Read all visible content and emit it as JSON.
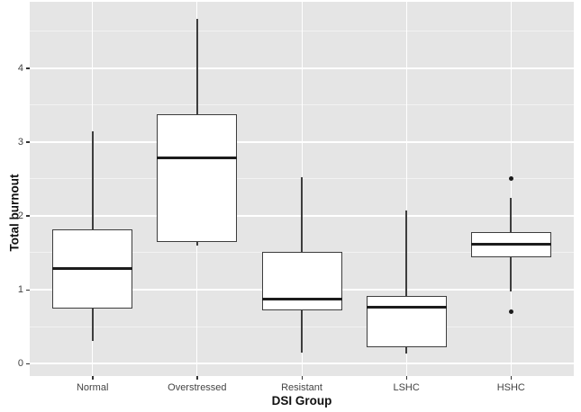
{
  "chart_data": {
    "type": "boxplot",
    "title": "",
    "xlabel": "DSI Group",
    "ylabel": "Total burnout",
    "categories": [
      "Normal",
      "Overstressed",
      "Resistant",
      "LSHC",
      "HSHC"
    ],
    "series": [
      {
        "category": "Normal",
        "whisker_low": 0.3,
        "q1": 0.74,
        "median": 1.29,
        "q3": 1.82,
        "whisker_high": 3.15,
        "outliers": []
      },
      {
        "category": "Overstressed",
        "whisker_low": 1.6,
        "q1": 1.65,
        "median": 2.78,
        "q3": 3.38,
        "whisker_high": 4.67,
        "outliers": []
      },
      {
        "category": "Resistant",
        "whisker_low": 0.15,
        "q1": 0.72,
        "median": 0.87,
        "q3": 1.51,
        "whisker_high": 2.52,
        "outliers": []
      },
      {
        "category": "LSHC",
        "whisker_low": 0.13,
        "q1": 0.22,
        "median": 0.76,
        "q3": 0.92,
        "whisker_high": 2.07,
        "outliers": []
      },
      {
        "category": "HSHC",
        "whisker_low": 0.98,
        "q1": 1.44,
        "median": 1.61,
        "q3": 1.78,
        "whisker_high": 2.24,
        "outliers": [
          2.5,
          0.7
        ]
      }
    ],
    "y_ticks": [
      "0",
      "1",
      "2",
      "3",
      "4"
    ],
    "y_tick_values": [
      0,
      1,
      2,
      3,
      4
    ],
    "y_minor_values": [
      0.5,
      1.5,
      2.5,
      3.5,
      4.5
    ],
    "ylim": [
      -0.17,
      4.9
    ],
    "grid": {
      "major": true,
      "minor": true,
      "vertical_at_categories": true
    },
    "legend": "none",
    "colors": {
      "panel_bg": "#e5e5e5",
      "grid_major": "#ffffff",
      "grid_minor": "#f2f2f2",
      "box_fill": "#ffffff",
      "box_border": "#3d3d3d",
      "median": "#1c1c1c",
      "outlier": "#1c1c1c",
      "tick_text": "#444444",
      "axis_title_text": "#111111"
    }
  }
}
